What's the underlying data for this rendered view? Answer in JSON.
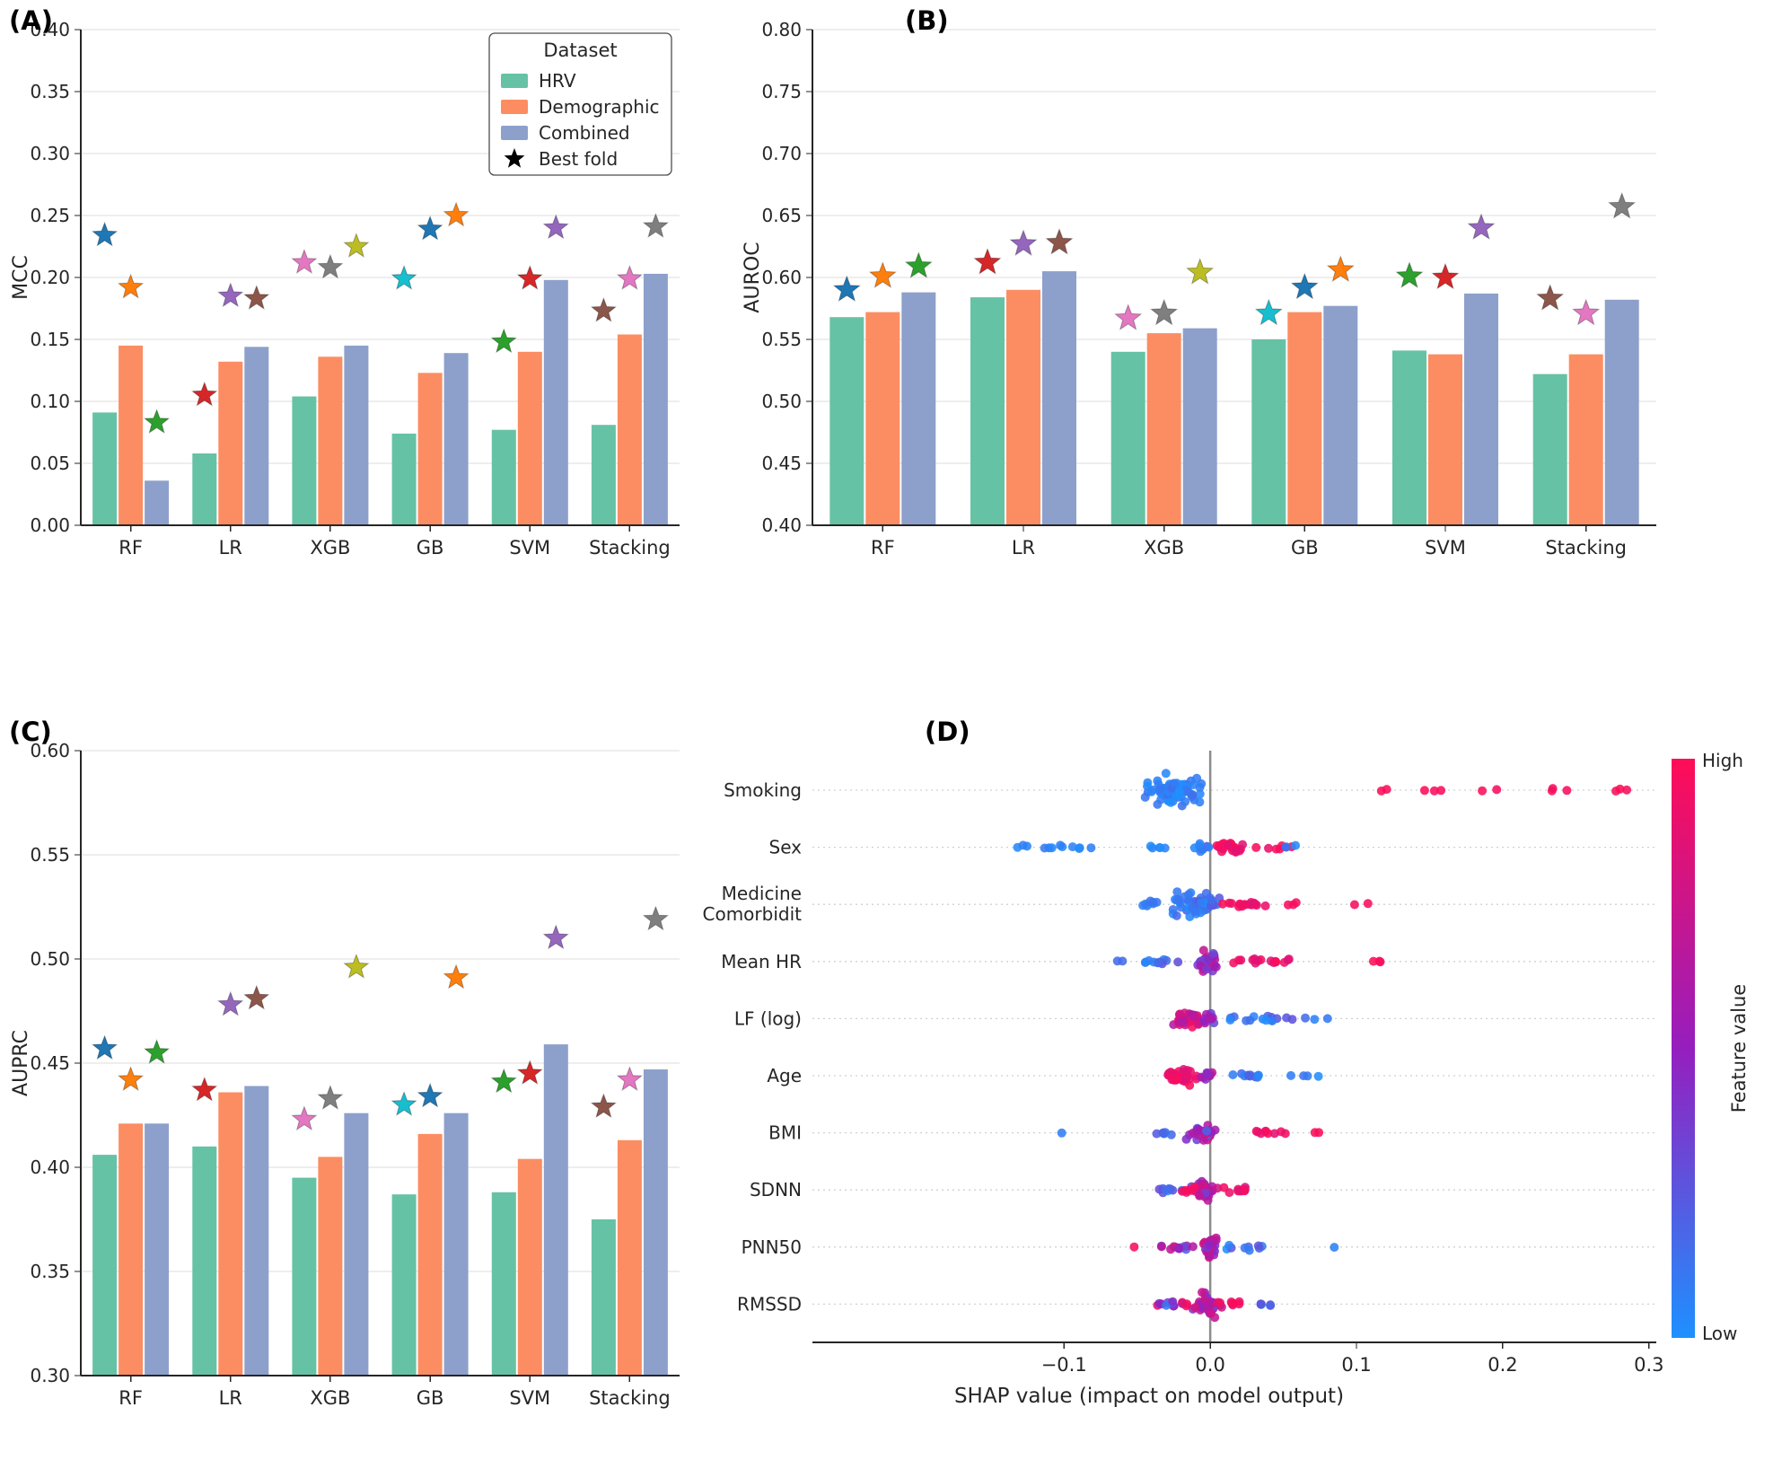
{
  "panels": [
    {
      "letter": "(A)"
    },
    {
      "letter": "(B)"
    },
    {
      "letter": "(C)"
    },
    {
      "letter": "(D)"
    }
  ],
  "legend": {
    "title": "Dataset",
    "items": [
      "HRV",
      "Demographic",
      "Combined"
    ],
    "best_fold_label": "Best fold",
    "best_fold_color": "#000000"
  },
  "palette": {
    "hrv": "#66c2a5",
    "demographic": "#fc8d62",
    "combined": "#8da0cb",
    "grid": "#dcdcdc",
    "spine": "#262626",
    "zero_line": "#8c8c8c"
  },
  "chart_data": [
    {
      "id": "A",
      "type": "bar",
      "title": "",
      "ylabel": "MCC",
      "xlabel": "",
      "ylim": [
        0.0,
        0.4
      ],
      "yticks": [
        0.0,
        0.05,
        0.1,
        0.15,
        0.2,
        0.25,
        0.3,
        0.35,
        0.4
      ],
      "tick_decimals": 2,
      "categories": [
        "RF",
        "LR",
        "XGB",
        "GB",
        "SVM",
        "Stacking"
      ],
      "series": [
        {
          "name": "HRV",
          "color": "#66c2a5",
          "values": [
            0.091,
            0.058,
            0.104,
            0.074,
            0.077,
            0.081
          ]
        },
        {
          "name": "Demographic",
          "color": "#fc8d62",
          "values": [
            0.145,
            0.132,
            0.136,
            0.123,
            0.14,
            0.154
          ]
        },
        {
          "name": "Combined",
          "color": "#8da0cb",
          "values": [
            0.036,
            0.144,
            0.145,
            0.139,
            0.198,
            0.203
          ]
        }
      ],
      "best_fold": [
        {
          "category": "RF",
          "values": [
            0.234,
            0.192,
            0.083
          ],
          "colors": [
            "#1f77b4",
            "#ff7f0e",
            "#2ca02c"
          ]
        },
        {
          "category": "LR",
          "values": [
            0.105,
            0.185,
            0.183
          ],
          "colors": [
            "#d62728",
            "#9467bd",
            "#8c564b"
          ]
        },
        {
          "category": "XGB",
          "values": [
            0.212,
            0.208,
            0.225
          ],
          "colors": [
            "#e377c2",
            "#7f7f7f",
            "#bcbd22"
          ]
        },
        {
          "category": "GB",
          "values": [
            0.199,
            0.239,
            0.25
          ],
          "colors": [
            "#17becf",
            "#1f77b4",
            "#ff7f0e"
          ]
        },
        {
          "category": "SVM",
          "values": [
            0.148,
            0.199,
            0.24
          ],
          "colors": [
            "#2ca02c",
            "#d62728",
            "#9467bd"
          ]
        },
        {
          "category": "Stacking",
          "values": [
            0.173,
            0.199,
            0.241
          ],
          "colors": [
            "#8c564b",
            "#e377c2",
            "#7f7f7f"
          ]
        }
      ],
      "show_legend": true
    },
    {
      "id": "B",
      "type": "bar",
      "title": "",
      "ylabel": "AUROC",
      "xlabel": "",
      "ylim": [
        0.4,
        0.8
      ],
      "yticks": [
        0.4,
        0.45,
        0.5,
        0.55,
        0.6,
        0.65,
        0.7,
        0.75,
        0.8
      ],
      "tick_decimals": 2,
      "categories": [
        "RF",
        "LR",
        "XGB",
        "GB",
        "SVM",
        "Stacking"
      ],
      "series": [
        {
          "name": "HRV",
          "color": "#66c2a5",
          "values": [
            0.568,
            0.584,
            0.54,
            0.55,
            0.541,
            0.522
          ]
        },
        {
          "name": "Demographic",
          "color": "#fc8d62",
          "values": [
            0.572,
            0.59,
            0.555,
            0.572,
            0.538,
            0.538
          ]
        },
        {
          "name": "Combined",
          "color": "#8da0cb",
          "values": [
            0.588,
            0.605,
            0.559,
            0.577,
            0.587,
            0.582
          ]
        }
      ],
      "best_fold": [
        {
          "category": "RF",
          "values": [
            0.59,
            0.601,
            0.609
          ],
          "colors": [
            "#1f77b4",
            "#ff7f0e",
            "#2ca02c"
          ]
        },
        {
          "category": "LR",
          "values": [
            0.612,
            0.627,
            0.628
          ],
          "colors": [
            "#d62728",
            "#9467bd",
            "#8c564b"
          ]
        },
        {
          "category": "XGB",
          "values": [
            0.567,
            0.571,
            0.604
          ],
          "colors": [
            "#e377c2",
            "#7f7f7f",
            "#bcbd22"
          ]
        },
        {
          "category": "GB",
          "values": [
            0.571,
            0.592,
            0.606
          ],
          "colors": [
            "#17becf",
            "#1f77b4",
            "#ff7f0e"
          ]
        },
        {
          "category": "SVM",
          "values": [
            0.601,
            0.6,
            0.64
          ],
          "colors": [
            "#2ca02c",
            "#d62728",
            "#9467bd"
          ]
        },
        {
          "category": "Stacking",
          "values": [
            0.583,
            0.571,
            0.657
          ],
          "colors": [
            "#8c564b",
            "#e377c2",
            "#7f7f7f"
          ]
        }
      ],
      "show_legend": false
    },
    {
      "id": "C",
      "type": "bar",
      "title": "",
      "ylabel": "AUPRC",
      "xlabel": "",
      "ylim": [
        0.3,
        0.6
      ],
      "yticks": [
        0.3,
        0.35,
        0.4,
        0.45,
        0.5,
        0.55,
        0.6
      ],
      "tick_decimals": 2,
      "categories": [
        "RF",
        "LR",
        "XGB",
        "GB",
        "SVM",
        "Stacking"
      ],
      "series": [
        {
          "name": "HRV",
          "color": "#66c2a5",
          "values": [
            0.406,
            0.41,
            0.395,
            0.387,
            0.388,
            0.375
          ]
        },
        {
          "name": "Demographic",
          "color": "#fc8d62",
          "values": [
            0.421,
            0.436,
            0.405,
            0.416,
            0.404,
            0.413
          ]
        },
        {
          "name": "Combined",
          "color": "#8da0cb",
          "values": [
            0.421,
            0.439,
            0.426,
            0.426,
            0.459,
            0.447
          ]
        }
      ],
      "best_fold": [
        {
          "category": "RF",
          "values": [
            0.457,
            0.442,
            0.455
          ],
          "colors": [
            "#1f77b4",
            "#ff7f0e",
            "#2ca02c"
          ]
        },
        {
          "category": "LR",
          "values": [
            0.437,
            0.478,
            0.481
          ],
          "colors": [
            "#d62728",
            "#9467bd",
            "#8c564b"
          ]
        },
        {
          "category": "XGB",
          "values": [
            0.423,
            0.433,
            0.496
          ],
          "colors": [
            "#e377c2",
            "#7f7f7f",
            "#bcbd22"
          ]
        },
        {
          "category": "GB",
          "values": [
            0.43,
            0.434,
            0.491
          ],
          "colors": [
            "#17becf",
            "#1f77b4",
            "#ff7f0e"
          ]
        },
        {
          "category": "SVM",
          "values": [
            0.441,
            0.445,
            0.51
          ],
          "colors": [
            "#2ca02c",
            "#d62728",
            "#9467bd"
          ]
        },
        {
          "category": "Stacking",
          "values": [
            0.429,
            0.442,
            0.519
          ],
          "colors": [
            "#8c564b",
            "#e377c2",
            "#7f7f7f"
          ]
        }
      ],
      "show_legend": false
    },
    {
      "id": "D",
      "type": "beeswarm",
      "title": "",
      "xlabel": "SHAP value (impact on model output)",
      "xlim": [
        -0.272,
        0.305
      ],
      "xticks": [
        -0.1,
        0.0,
        0.1,
        0.2,
        0.3
      ],
      "xtick_labels": [
        "−0.1",
        "0.0",
        "0.1",
        "0.2",
        "0.3"
      ],
      "colorbar": {
        "label": "Feature value",
        "high_label": "High",
        "low_label": "Low",
        "high_color": "#ff0d57",
        "mid_color": "#961ebe",
        "low_color": "#1e90ff"
      },
      "features": [
        {
          "label_lines": [
            "Smoking"
          ],
          "clusters": [
            [
              -0.025,
              0.022,
              70,
              0.0,
              0.15,
              15
            ],
            [
              0.125,
              0.01,
              2,
              0.95,
              1,
              2
            ],
            [
              0.15,
              0.012,
              3,
              0.95,
              1,
              2
            ],
            [
              0.19,
              0.01,
              2,
              0.95,
              1,
              2
            ],
            [
              0.235,
              0.015,
              3,
              0.95,
              1,
              2
            ],
            [
              0.28,
              0.015,
              3,
              0.95,
              1,
              2
            ]
          ]
        },
        {
          "label_lines": [
            "Sex"
          ],
          "clusters": [
            [
              -0.1,
              0.05,
              12,
              0,
              0.1,
              2
            ],
            [
              -0.035,
              0.012,
              5,
              0,
              0.1,
              2
            ],
            [
              -0.006,
              0.007,
              9,
              0,
              0.35,
              4
            ],
            [
              0.012,
              0.013,
              24,
              0.85,
              1,
              7
            ],
            [
              0.045,
              0.018,
              6,
              0.9,
              1,
              2
            ],
            [
              0.057,
              0.008,
              3,
              0,
              0.2,
              2
            ]
          ]
        },
        {
          "label_lines": [
            "Medicine",
            "Comorbidit"
          ],
          "clusters": [
            [
              -0.012,
              0.02,
              52,
              0,
              0.25,
              12
            ],
            [
              -0.046,
              0.012,
              7,
              0,
              0.2,
              3
            ],
            [
              0.022,
              0.018,
              16,
              0.85,
              1,
              5
            ],
            [
              0.06,
              0.008,
              3,
              0.95,
              1,
              2
            ],
            [
              0.115,
              0.018,
              2,
              0.95,
              1,
              1
            ]
          ]
        },
        {
          "label_lines": [
            "Mean HR"
          ],
          "clusters": [
            [
              -0.002,
              0.008,
              38,
              0.3,
              0.8,
              11
            ],
            [
              -0.035,
              0.02,
              11,
              0,
              0.3,
              3
            ],
            [
              0.035,
              0.028,
              15,
              0.8,
              1,
              3
            ],
            [
              0.115,
              0.015,
              3,
              0.95,
              1,
              1
            ],
            [
              -0.06,
              0.005,
              2,
              0.05,
              0.2,
              1
            ]
          ]
        },
        {
          "label_lines": [
            "LF (log)"
          ],
          "clusters": [
            [
              -0.015,
              0.013,
              34,
              0.6,
              1,
              9
            ],
            [
              0.0,
              0.005,
              12,
              0.3,
              0.7,
              6
            ],
            [
              0.035,
              0.026,
              15,
              0,
              0.3,
              3
            ],
            [
              0.075,
              0.012,
              3,
              0,
              0.2,
              1
            ]
          ]
        },
        {
          "label_lines": [
            "Age"
          ],
          "clusters": [
            [
              -0.022,
              0.016,
              38,
              0.8,
              1,
              9
            ],
            [
              -0.002,
              0.006,
              10,
              0.4,
              0.7,
              5
            ],
            [
              0.025,
              0.02,
              11,
              0,
              0.25,
              2
            ],
            [
              0.07,
              0.028,
              4,
              0,
              0.15,
              1
            ]
          ]
        },
        {
          "label_lines": [
            "BMI"
          ],
          "clusters": [
            [
              -0.005,
              0.013,
              32,
              0.1,
              0.9,
              10
            ],
            [
              -0.1,
              0.003,
              1,
              0.05,
              0.1,
              1
            ],
            [
              -0.032,
              0.012,
              6,
              0,
              0.3,
              2
            ],
            [
              0.035,
              0.02,
              9,
              0.85,
              1,
              3
            ],
            [
              0.075,
              0.01,
              2,
              0.95,
              1,
              1
            ]
          ]
        },
        {
          "label_lines": [
            "SDNN"
          ],
          "clusters": [
            [
              -0.004,
              0.011,
              38,
              0.3,
              0.8,
              11
            ],
            [
              -0.028,
              0.013,
              9,
              0,
              0.3,
              3
            ],
            [
              0.02,
              0.014,
              11,
              0.8,
              1,
              4
            ],
            [
              -0.015,
              0.008,
              6,
              0.9,
              1,
              5
            ]
          ]
        },
        {
          "label_lines": [
            "PNN50"
          ],
          "clusters": [
            [
              0.0,
              0.006,
              40,
              0.3,
              0.8,
              13
            ],
            [
              -0.022,
              0.014,
              13,
              0.2,
              1,
              4
            ],
            [
              -0.05,
              0.004,
              1,
              0.95,
              1,
              1
            ],
            [
              0.022,
              0.016,
              9,
              0,
              0.3,
              3
            ],
            [
              0.08,
              0.005,
              1,
              0.05,
              0.1,
              1
            ]
          ]
        },
        {
          "label_lines": [
            "RMSSD"
          ],
          "clusters": [
            [
              -0.002,
              0.01,
              38,
              0.3,
              0.8,
              12
            ],
            [
              -0.025,
              0.015,
              13,
              0,
              1,
              4
            ],
            [
              0.012,
              0.012,
              8,
              0.85,
              1,
              3
            ],
            [
              0.035,
              0.012,
              5,
              0,
              0.3,
              2
            ]
          ]
        }
      ]
    }
  ]
}
